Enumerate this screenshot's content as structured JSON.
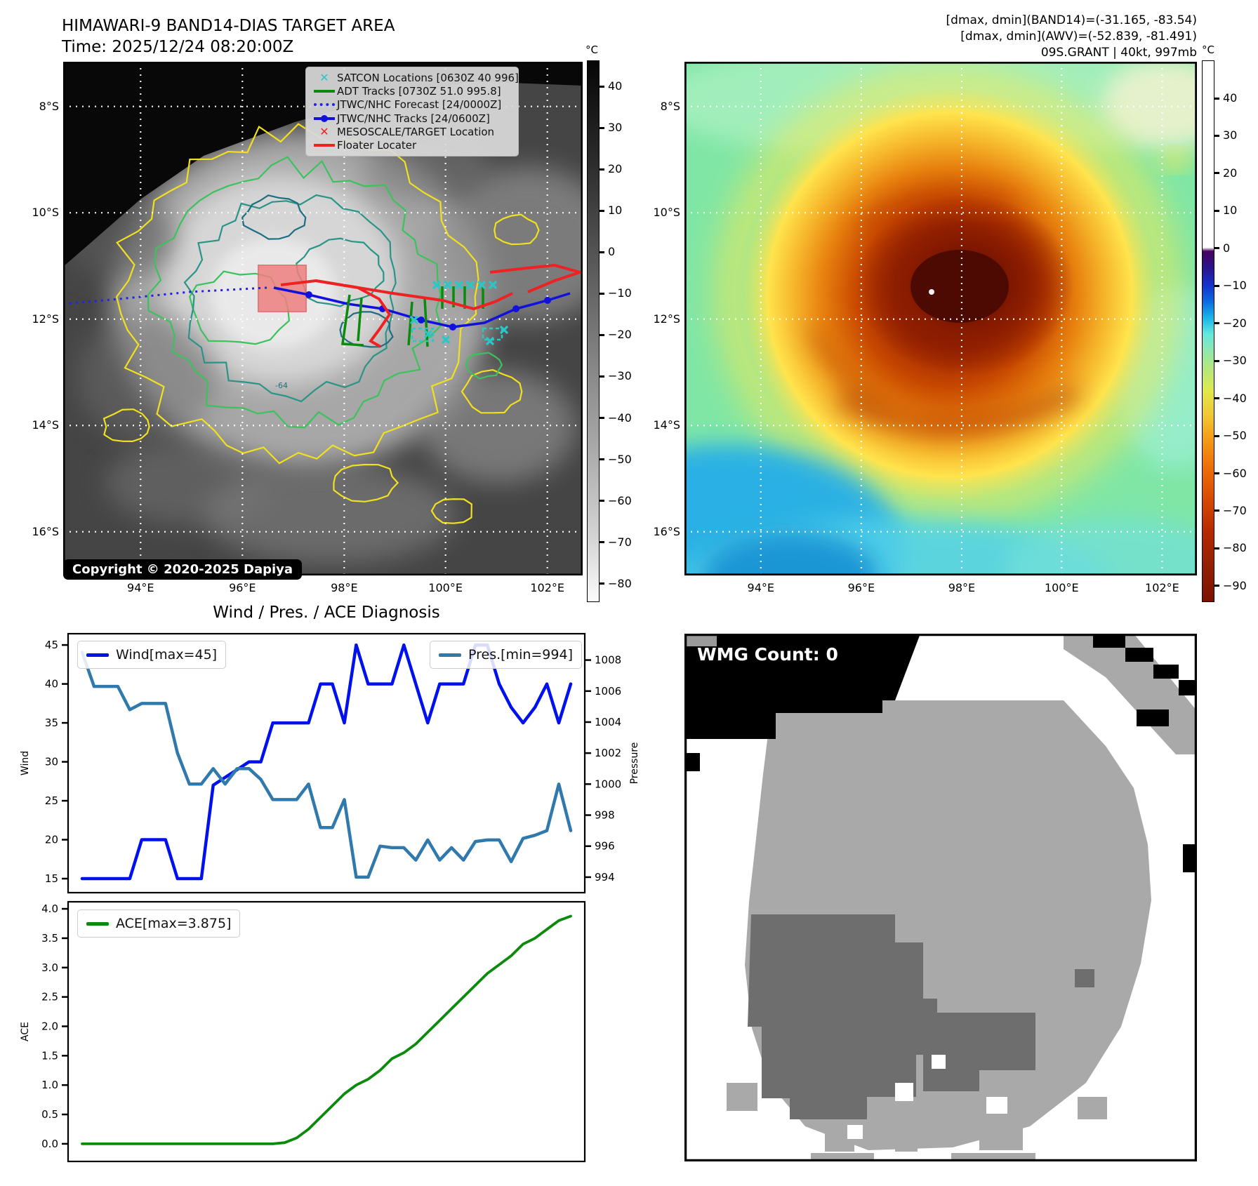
{
  "header": {
    "title": "HIMAWARI-9 BAND14-DIAS TARGET AREA",
    "time_line": "Time: 2025/12/24 08:20:00Z",
    "info_line1": "[dmax, dmin](BAND14)=(-31.165, -83.54)",
    "info_line2": "[dmax, dmin](AWV)=(-52.839, -81.491)",
    "info_line3": "09S.GRANT | 40kt, 997mb"
  },
  "band14_panel": {
    "legend": [
      {
        "label": "SATCON Locations [0630Z 40 996]",
        "marker": "x",
        "color": "#29c8c8"
      },
      {
        "label": "ADT Tracks [0730Z 51.0 995.8]",
        "marker": "line",
        "color": "#0b8a0b"
      },
      {
        "label": "JTWC/NHC Forecast [24/0000Z]",
        "marker": "dotted",
        "color": "#2222ee"
      },
      {
        "label": "JTWC/NHC Tracks [24/0600Z]",
        "marker": "line-dot",
        "color": "#1111dd"
      },
      {
        "label": "MESOSCALE/TARGET Location",
        "marker": "x",
        "color": "#ee2222"
      },
      {
        "label": "Floater Locater",
        "marker": "line",
        "color": "#ee2222"
      }
    ],
    "copyright": "Copyright © 2020-2025 Dapiya",
    "lat_ticks": [
      "8°S",
      "10°S",
      "12°S",
      "14°S",
      "16°S"
    ],
    "lon_ticks": [
      "94°E",
      "96°E",
      "98°E",
      "100°E",
      "102°E"
    ],
    "contour_label": "-64",
    "target_box_color": "#f08080",
    "colorbar": {
      "unit": "°C",
      "ticks": [
        "40",
        "30",
        "20",
        "10",
        "0",
        "−10",
        "−20",
        "−30",
        "−40",
        "−50",
        "−60",
        "−70",
        "−80"
      ]
    }
  },
  "awv_panel": {
    "lat_ticks": [
      "8°S",
      "10°S",
      "12°S",
      "14°S",
      "16°S"
    ],
    "lon_ticks": [
      "94°E",
      "96°E",
      "98°E",
      "100°E",
      "102°E"
    ],
    "colorbar": {
      "unit": "°C",
      "ticks": [
        "40",
        "30",
        "20",
        "10",
        "0",
        "−10",
        "−20",
        "−30",
        "−40",
        "−50",
        "−60",
        "−70",
        "−80",
        "−90"
      ]
    }
  },
  "wmg_panel": {
    "count_label": "WMG Count: 0"
  },
  "diagnosis": {
    "title": "Wind / Pres. / ACE Diagnosis"
  },
  "chart_data": [
    {
      "type": "line",
      "title": "Wind / Pres. / ACE Diagnosis",
      "series": [
        {
          "name": "Wind[max=45]",
          "axis": "left",
          "color": "#0011ee",
          "values": [
            15,
            15,
            15,
            15,
            15,
            20,
            20,
            20,
            15,
            15,
            15,
            27,
            28,
            29,
            30,
            30,
            35,
            35,
            35,
            35,
            40,
            40,
            35,
            45,
            40,
            40,
            40,
            45,
            40,
            35,
            40,
            40,
            40,
            45,
            45,
            40,
            37,
            35,
            37,
            40,
            35,
            40
          ]
        },
        {
          "name": "Pres.[min=994]",
          "axis": "right",
          "color": "#3079ad",
          "values": [
            1008.5,
            1006.3,
            1006.3,
            1006.3,
            1004.8,
            1005.2,
            1005.2,
            1005.2,
            1002,
            1000,
            1000,
            1001,
            1000,
            1001,
            1001,
            1000.3,
            999,
            999,
            999,
            1000,
            997.2,
            997.2,
            999,
            994,
            994,
            996,
            995.9,
            995.9,
            995.1,
            996.4,
            995.1,
            995.9,
            995.1,
            996.3,
            996.4,
            996.4,
            995,
            996.5,
            996.7,
            997,
            1000,
            997
          ]
        }
      ],
      "left_axis": {
        "label": "Wind",
        "ticks": [
          15,
          20,
          25,
          30,
          35,
          40,
          45
        ],
        "range": [
          13.2,
          46.45
        ]
      },
      "right_axis": {
        "label": "Pressure",
        "ticks": [
          994,
          996,
          998,
          1000,
          1002,
          1004,
          1006,
          1008
        ],
        "range": [
          993.0,
          1009.7
        ]
      },
      "grid": false
    },
    {
      "type": "line",
      "series": [
        {
          "name": "ACE[max=3.875]",
          "axis": "left",
          "color": "#0b8a0b",
          "values": [
            0,
            0,
            0,
            0,
            0,
            0,
            0,
            0,
            0,
            0,
            0,
            0,
            0,
            0,
            0,
            0,
            0,
            0.02,
            0.1,
            0.25,
            0.45,
            0.65,
            0.85,
            1.0,
            1.1,
            1.25,
            1.45,
            1.55,
            1.7,
            1.9,
            2.1,
            2.3,
            2.5,
            2.7,
            2.9,
            3.05,
            3.2,
            3.4,
            3.5,
            3.65,
            3.8,
            3.875
          ]
        }
      ],
      "left_axis": {
        "label": "ACE",
        "ticks": [
          0.0,
          0.5,
          1.0,
          1.5,
          2.0,
          2.5,
          3.0,
          3.5,
          4.0
        ],
        "range": [
          -0.3,
          4.12
        ]
      },
      "grid": false
    }
  ]
}
